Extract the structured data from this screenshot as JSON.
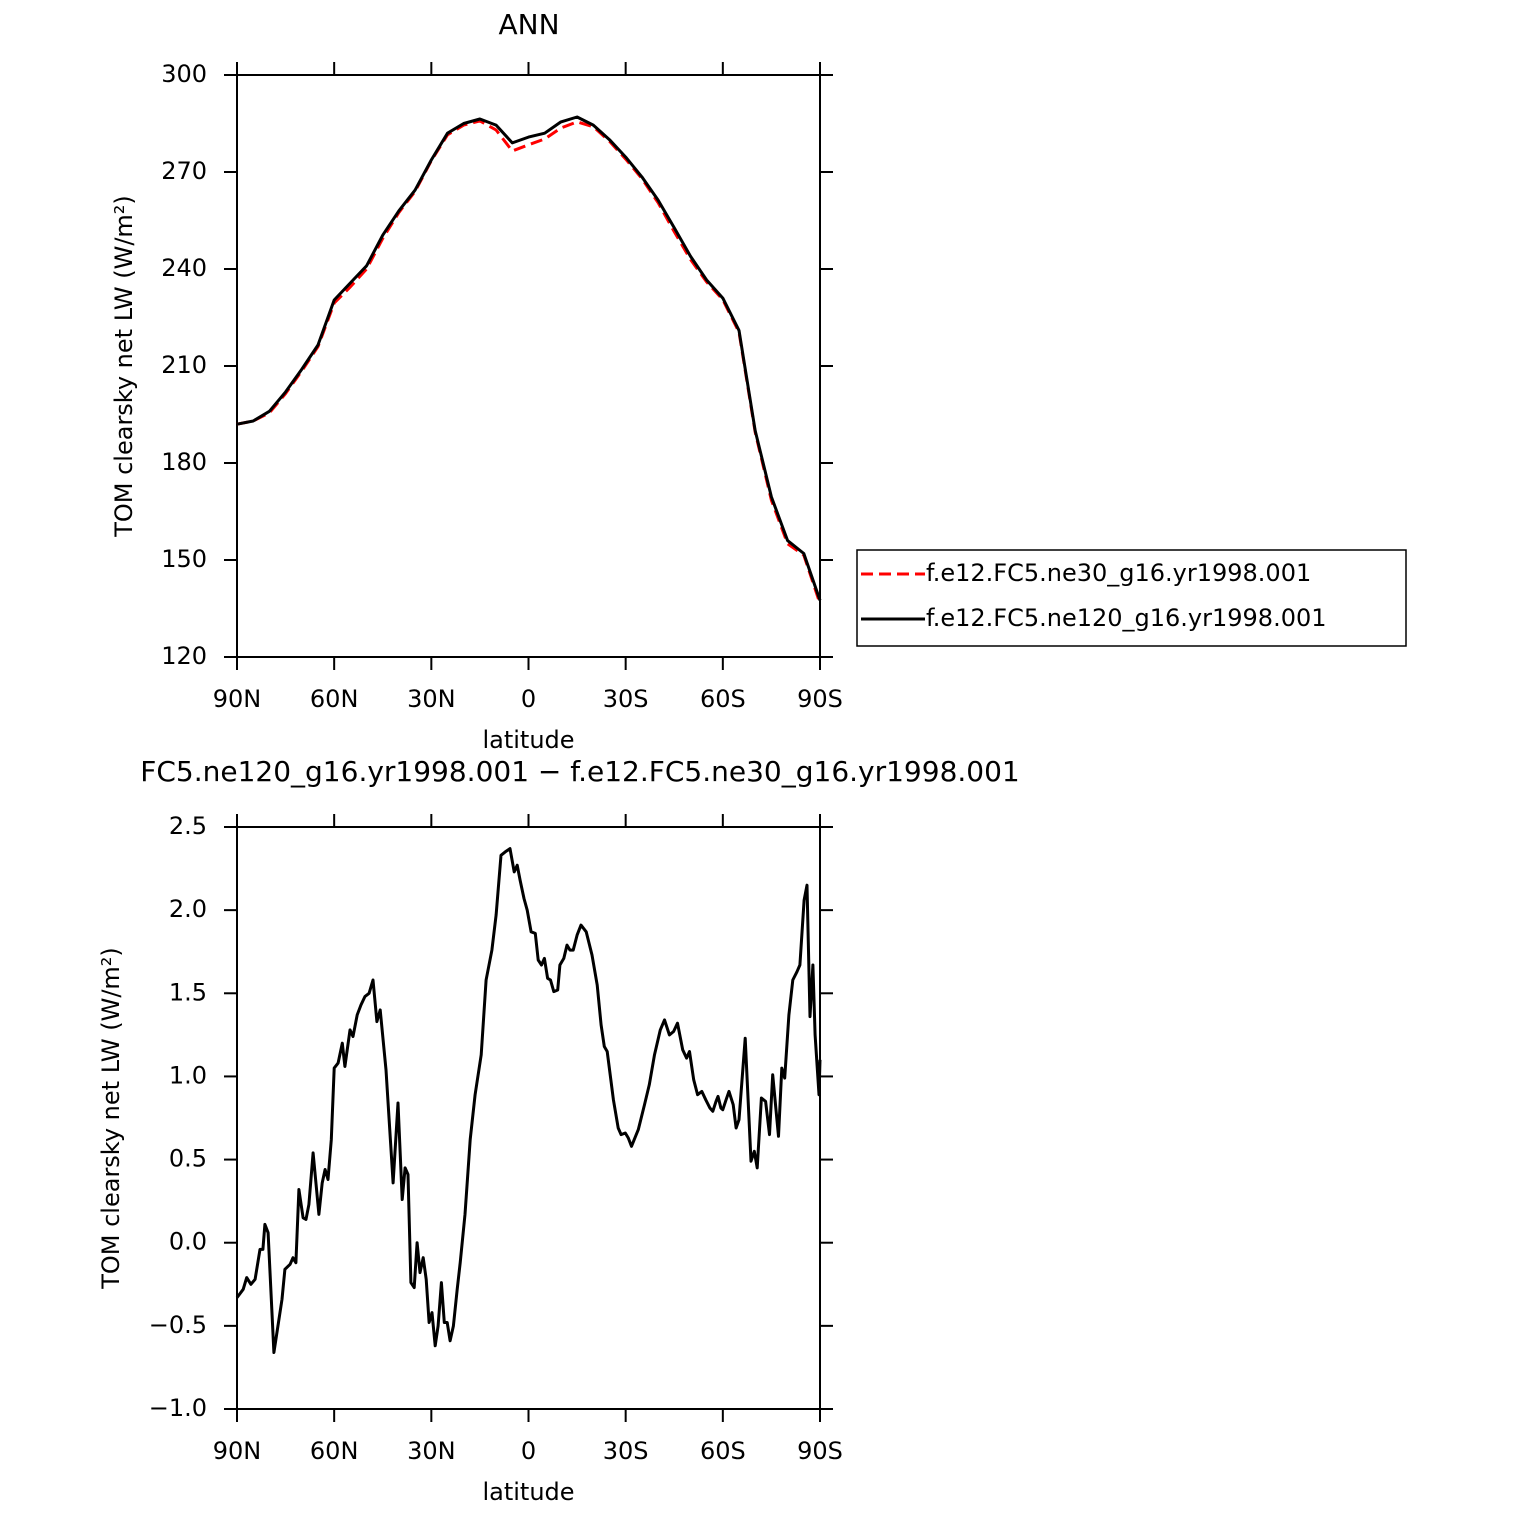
{
  "chart_data": [
    {
      "type": "line",
      "title": "ANN",
      "ylabel": "TOM clearsky net LW (W/m²)",
      "xlabel": "latitude",
      "x": [
        90,
        85,
        80,
        75,
        70,
        65,
        60,
        55,
        50,
        45,
        40,
        35,
        30,
        25,
        20,
        15,
        10,
        5,
        0,
        -5,
        -10,
        -15,
        -20,
        -25,
        -30,
        -35,
        -40,
        -45,
        -50,
        -55,
        -60,
        -65,
        -70,
        -75,
        -80,
        -85,
        -90
      ],
      "series": [
        {
          "name": "f.e12.FC5.ne30_g16.yr1998.001",
          "color": "#ff0000",
          "dash": "dashed",
          "values": [
            192,
            193,
            195.5,
            201.5,
            208.5,
            216,
            229.5,
            234.5,
            240,
            249.5,
            257.5,
            264,
            273.5,
            281.5,
            284.5,
            285.8,
            283,
            276.5,
            278.4,
            280.2,
            283.6,
            285.5,
            284,
            279.5,
            274,
            268,
            260.5,
            251.5,
            243,
            236,
            230.5,
            220.5,
            189.5,
            168.5,
            155,
            151.5,
            136.5
          ]
        },
        {
          "name": "f.e12.FC5.ne120_g16.yr1998.001",
          "color": "#000000",
          "dash": "solid",
          "values": [
            192,
            193,
            196,
            202,
            209,
            216.5,
            230.4,
            235.7,
            241,
            250.5,
            258,
            264.4,
            273.7,
            282,
            285,
            286.4,
            284.5,
            279,
            280.8,
            282,
            285.5,
            287,
            284.5,
            280,
            274.6,
            268.5,
            261.3,
            252.7,
            244,
            236.6,
            231,
            221,
            190,
            169.5,
            156,
            152,
            137.5
          ]
        }
      ],
      "xlim": [
        90,
        -90
      ],
      "xticks": [
        {
          "value": 90,
          "label": "90N"
        },
        {
          "value": 60,
          "label": "60N"
        },
        {
          "value": 30,
          "label": "30N"
        },
        0,
        {
          "value": -30,
          "label": "30S"
        },
        {
          "value": -60,
          "label": "60S"
        },
        {
          "value": -90,
          "label": "90S"
        }
      ],
      "ylim": [
        120,
        300
      ],
      "yticks": [
        120,
        150,
        180,
        210,
        240,
        270,
        300
      ],
      "legend": "right"
    },
    {
      "type": "line",
      "title": "FC5.ne120_g16.yr1998.001 − f.e12.FC5.ne30_g16.yr1998.001",
      "ylabel": "TOM clearsky net LW (W/m²)",
      "xlabel": "latitude",
      "x": [
        90,
        88.1,
        87,
        85.7,
        84.4,
        82.9,
        82,
        81.4,
        80.4,
        78.6,
        76.1,
        75.2,
        73.6,
        72.7,
        71.8,
        70.9,
        69.6,
        68.7,
        67.8,
        66.5,
        64.7,
        63.7,
        62.8,
        61.9,
        60.9,
        60,
        58.8,
        57.5,
        56.7,
        55.1,
        54.2,
        52.9,
        51.7,
        50.5,
        49.2,
        48,
        46.8,
        45.8,
        44,
        41.8,
        40.3,
        39,
        38.1,
        37.2,
        36.3,
        35.3,
        34.4,
        33.5,
        32.5,
        31.6,
        30.7,
        29.8,
        28.8,
        27.9,
        26.9,
        26,
        25.1,
        24.2,
        23.2,
        22,
        21.1,
        19.6,
        18,
        16.5,
        14.6,
        13.1,
        11.3,
        10,
        8.5,
        7.2,
        5.7,
        4.4,
        3.5,
        2.6,
        1.4,
        0.4,
        -0.8,
        -2.1,
        -3,
        -4,
        -4.9,
        -5.9,
        -6.8,
        -7.8,
        -9,
        -9.7,
        -10.9,
        -11.9,
        -12.8,
        -13.8,
        -15,
        -16.2,
        -17.8,
        -19.6,
        -21.2,
        -22.4,
        -23.4,
        -24.3,
        -26.2,
        -27.7,
        -28.6,
        -29.9,
        -30.8,
        -31.8,
        -33.9,
        -35.8,
        -37.3,
        -38.9,
        -40.7,
        -42,
        -43.5,
        -44.8,
        -46,
        -47.6,
        -48.8,
        -49.7,
        -51,
        -52.2,
        -53.5,
        -54.7,
        -56,
        -56.9,
        -57.9,
        -58.5,
        -59.4,
        -60,
        -61,
        -61.9,
        -63.2,
        -64.1,
        -65,
        -66.9,
        -68.7,
        -69.7,
        -70.6,
        -71.9,
        -73.2,
        -74.4,
        -75.4,
        -77.2,
        -78.2,
        -79.1,
        -80.4,
        -81.6,
        -82.9,
        -83.8,
        -85.1,
        -86,
        -86.9,
        -87.8,
        -88.5,
        -89.7,
        -90
      ],
      "series": [
        {
          "color": "#000000",
          "dash": "solid",
          "values": [
            -0.33,
            -0.28,
            -0.21,
            -0.25,
            -0.22,
            -0.04,
            -0.04,
            0.11,
            0.06,
            -0.66,
            -0.34,
            -0.16,
            -0.13,
            -0.09,
            -0.12,
            0.32,
            0.15,
            0.14,
            0.23,
            0.54,
            0.17,
            0.36,
            0.44,
            0.38,
            0.62,
            1.05,
            1.08,
            1.2,
            1.06,
            1.28,
            1.24,
            1.37,
            1.43,
            1.48,
            1.5,
            1.58,
            1.33,
            1.4,
            1.04,
            0.36,
            0.84,
            0.26,
            0.45,
            0.41,
            -0.24,
            -0.27,
            0,
            -0.18,
            -0.09,
            -0.22,
            -0.48,
            -0.42,
            -0.62,
            -0.5,
            -0.24,
            -0.48,
            -0.48,
            -0.59,
            -0.5,
            -0.28,
            -0.12,
            0.17,
            0.62,
            0.89,
            1.13,
            1.58,
            1.76,
            1.97,
            2.33,
            2.35,
            2.37,
            2.23,
            2.27,
            2.18,
            2.07,
            2,
            1.87,
            1.86,
            1.7,
            1.67,
            1.71,
            1.59,
            1.58,
            1.51,
            1.52,
            1.67,
            1.71,
            1.79,
            1.76,
            1.76,
            1.85,
            1.91,
            1.87,
            1.73,
            1.55,
            1.31,
            1.18,
            1.15,
            0.86,
            0.69,
            0.65,
            0.66,
            0.63,
            0.58,
            0.68,
            0.83,
            0.95,
            1.13,
            1.28,
            1.34,
            1.25,
            1.27,
            1.32,
            1.16,
            1.11,
            1.15,
            0.98,
            0.89,
            0.91,
            0.86,
            0.81,
            0.79,
            0.85,
            0.88,
            0.81,
            0.8,
            0.86,
            0.91,
            0.83,
            0.69,
            0.74,
            1.23,
            0.49,
            0.55,
            0.45,
            0.87,
            0.85,
            0.65,
            1.01,
            0.64,
            1.05,
            0.99,
            1.37,
            1.58,
            1.63,
            1.67,
            2.06,
            2.15,
            1.36,
            1.67,
            1.25,
            0.89,
            1.1
          ]
        }
      ],
      "xlim": [
        90,
        -90
      ],
      "xticks": [
        {
          "value": 90,
          "label": "90N"
        },
        {
          "value": 60,
          "label": "60N"
        },
        {
          "value": 30,
          "label": "30N"
        },
        0,
        {
          "value": -30,
          "label": "30S"
        },
        {
          "value": -60,
          "label": "60S"
        },
        {
          "value": -90,
          "label": "90S"
        }
      ],
      "ylim": [
        -1,
        2.5
      ],
      "yticks": [
        {
          "value": -1,
          "label": "−1.0"
        },
        {
          "value": -0.5,
          "label": "−0.5"
        },
        {
          "value": 0,
          "label": "0.0"
        },
        0.5,
        {
          "value": 1,
          "label": "1.0"
        },
        1.5,
        {
          "value": 2,
          "label": "2.0"
        },
        2.5
      ]
    }
  ]
}
